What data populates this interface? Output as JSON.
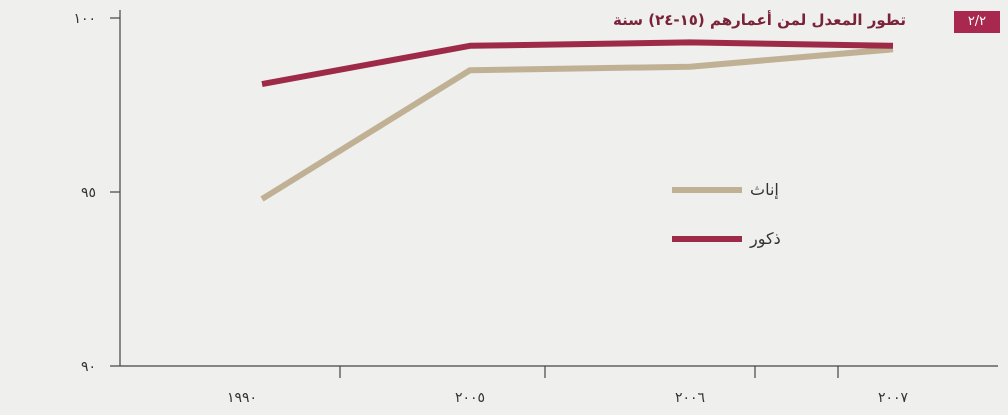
{
  "figure_badge": "٢/٢",
  "colors": {
    "female": "#c1b194",
    "male": "#9d2b48",
    "axis": "#444444",
    "title": "#7a2338",
    "badge": "#a8284f"
  },
  "chart_data": {
    "type": "line",
    "title": "تطور المعدل لمن أعمارهم (١٥-٢٤) سنة",
    "categories": [
      "١٩٩٠",
      "٢٠٠٥",
      "٢٠٠٦",
      "٢٠٠٧"
    ],
    "x": [
      1990,
      2005,
      2006,
      2007
    ],
    "y_ticks": [
      {
        "value": 100,
        "label": "١٠٠"
      },
      {
        "value": 95,
        "label": "٩٥"
      },
      {
        "value": 90,
        "label": "٩٠"
      }
    ],
    "ylim": [
      90,
      100
    ],
    "grid": false,
    "legend_position": "center-right",
    "series": [
      {
        "key": "female",
        "name": "إناث",
        "values": [
          94.8,
          98.5,
          98.6,
          99.1
        ]
      },
      {
        "key": "male",
        "name": "ذكور",
        "values": [
          98.1,
          99.2,
          99.3,
          99.2
        ]
      }
    ]
  }
}
